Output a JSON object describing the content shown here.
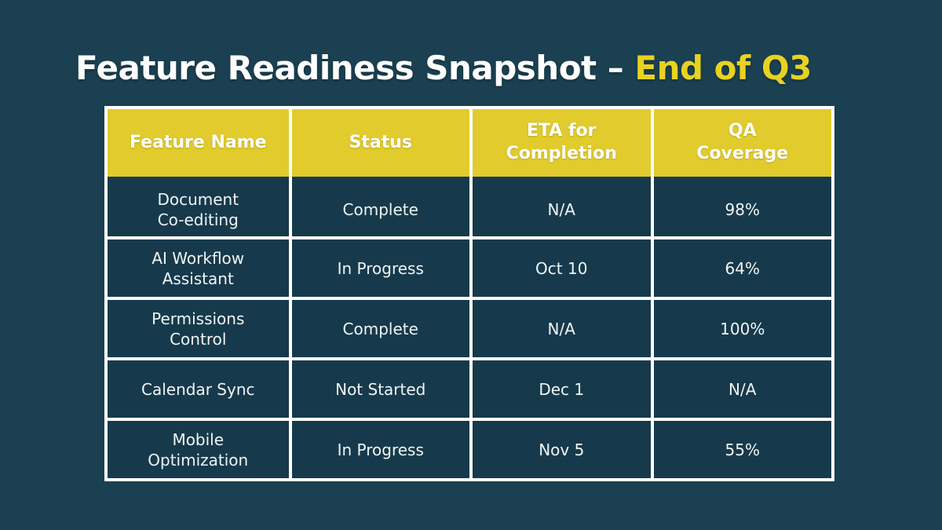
{
  "slide": {
    "title_main": "Feature Readiness Snapshot –",
    "title_highlight": "End of Q3"
  },
  "colors": {
    "background": "#1A4051",
    "cell_fill": "#163A4C",
    "header_fill": "#E2CB2D",
    "title_highlight": "#E8D222",
    "border": "#FFFFFF",
    "header_text": "#FFFFFF",
    "body_text": "#F1F4F4"
  },
  "table": {
    "columns": [
      "Feature Name",
      "Status",
      "ETA for\nCompletion",
      "QA\nCoverage"
    ],
    "rows": [
      {
        "feature": "Document\nCo-editing",
        "status": "Complete",
        "eta": "N/A",
        "qa": "98%"
      },
      {
        "feature": "AI Workflow\nAssistant",
        "status": "In Progress",
        "eta": "Oct 10",
        "qa": "64%"
      },
      {
        "feature": "Permissions\nControl",
        "status": "Complete",
        "eta": "N/A",
        "qa": "100%"
      },
      {
        "feature": "Calendar Sync",
        "status": "Not Started",
        "eta": "Dec 1",
        "qa": "N/A"
      },
      {
        "feature": "Mobile\nOptimization",
        "status": "In Progress",
        "eta": "Nov 5",
        "qa": "55%"
      }
    ]
  }
}
